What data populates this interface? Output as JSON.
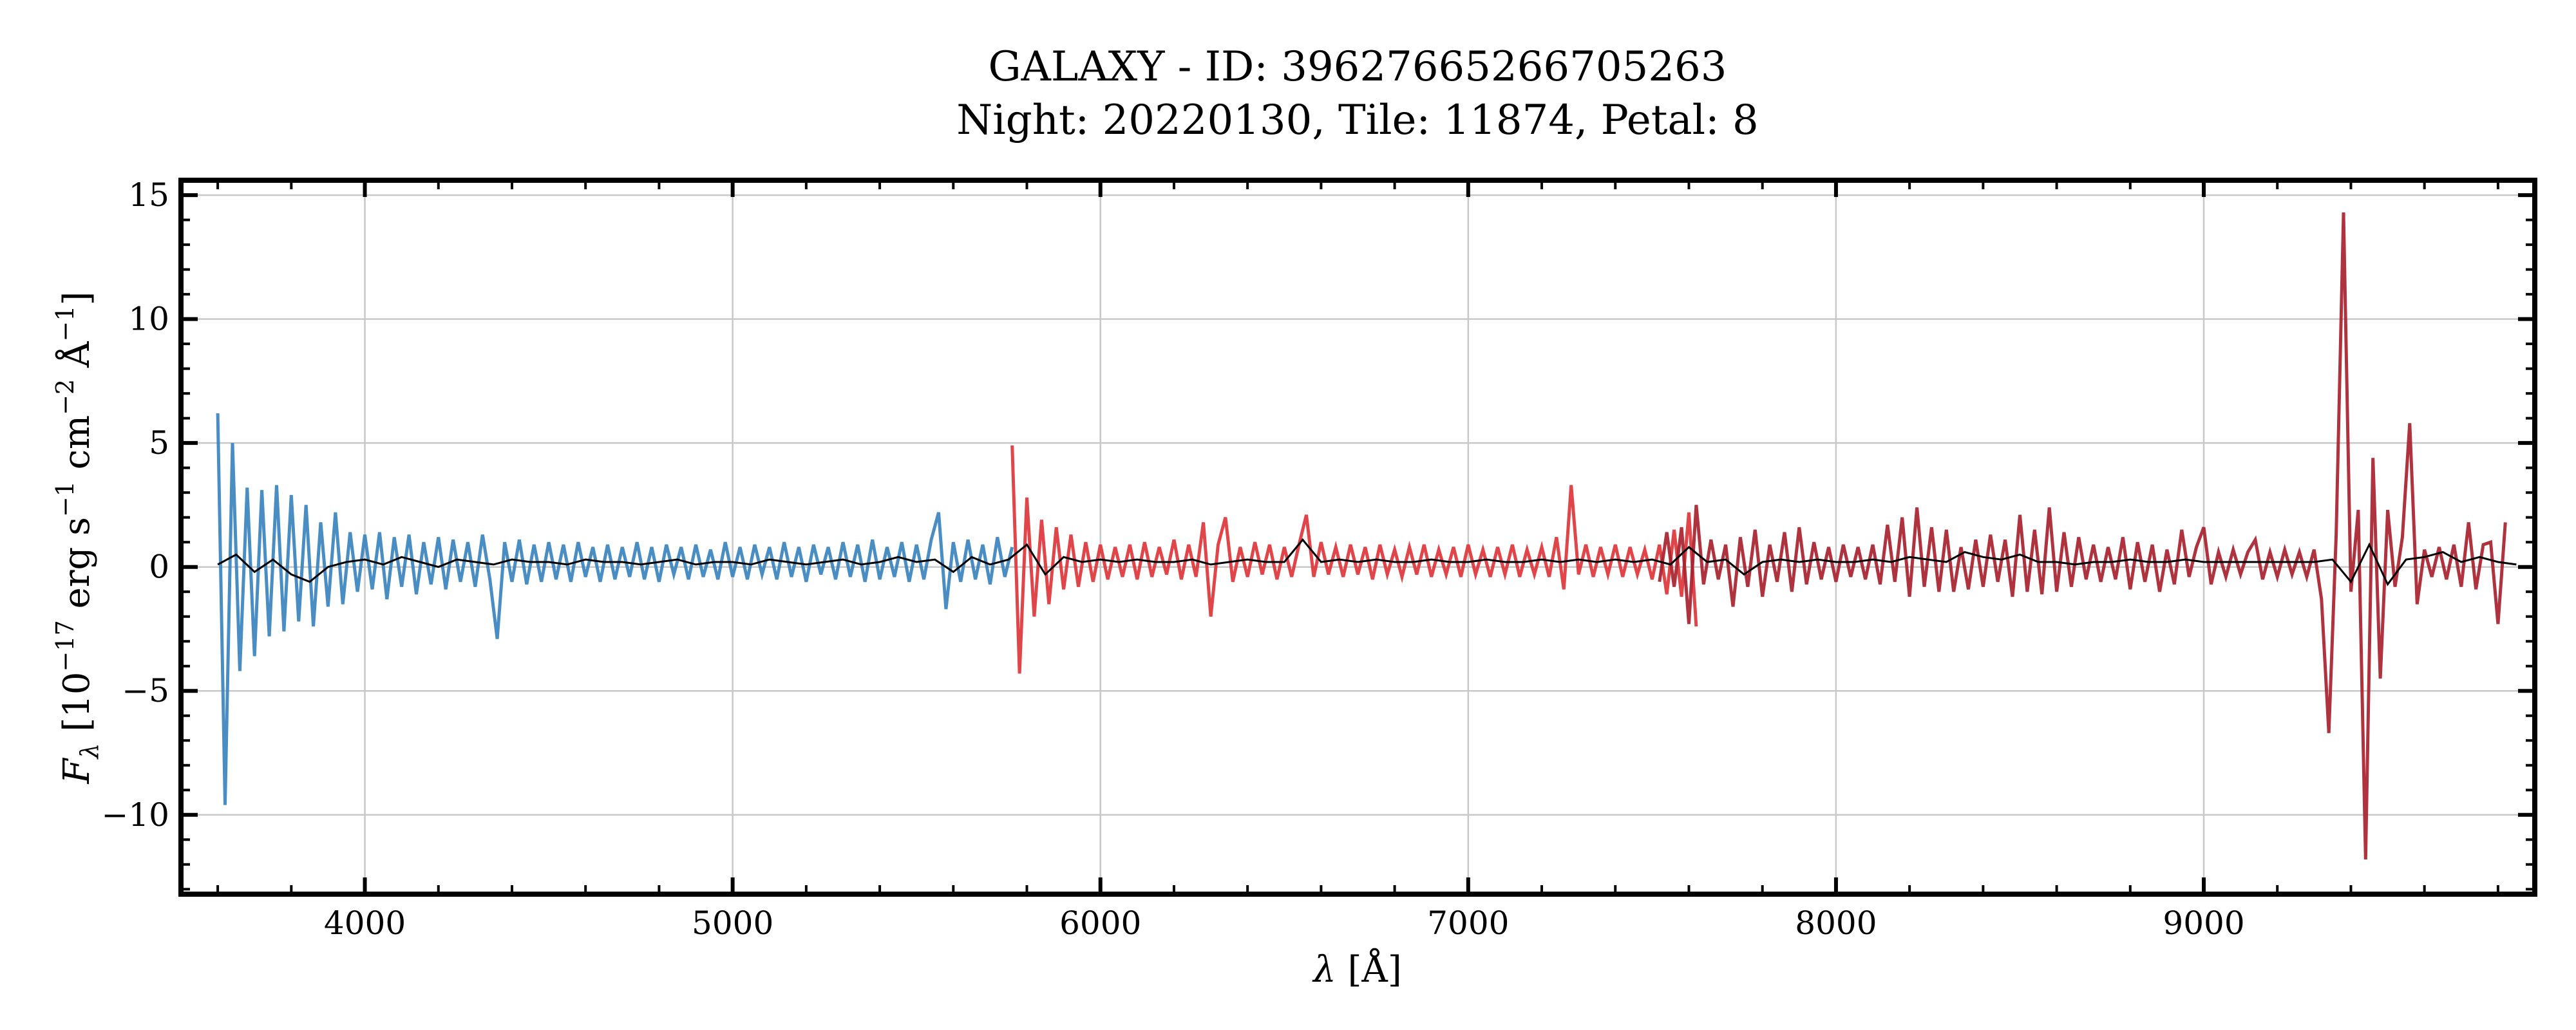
{
  "chart_data": {
    "type": "line",
    "title": [
      "GALAXY - ID: 39627665266705263",
      "Night: 20220130, Tile: 11874, Petal: 8"
    ],
    "xlabel": {
      "symbol": "λ",
      "unit": " [Å]"
    },
    "ylabel": {
      "main": "F",
      "sub": "λ",
      "parts": [
        " [10",
        "−17",
        " erg s",
        "−1",
        " cm",
        "−2",
        " Å",
        "−1",
        "]"
      ]
    },
    "xlim": [
      3500,
      9900
    ],
    "ylim": [
      -13.2,
      15.6
    ],
    "xticks": [
      4000,
      5000,
      6000,
      7000,
      8000,
      9000
    ],
    "xtick_labels": [
      "4000",
      "5000",
      "6000",
      "7000",
      "8000",
      "9000"
    ],
    "yticks": [
      -10,
      -5,
      0,
      5,
      10,
      15
    ],
    "ytick_labels": [
      "−10",
      "−5",
      "0",
      "5",
      "10",
      "15"
    ],
    "grid": true,
    "series": [
      {
        "arm": "b",
        "color": "#3a83be",
        "lambda_start": 3600,
        "lambda_step": 20,
        "flux": [
          6.2,
          -9.6,
          5.0,
          -4.2,
          3.2,
          -3.6,
          3.1,
          -2.8,
          3.3,
          -2.6,
          2.9,
          -2.2,
          2.5,
          -2.4,
          1.8,
          -1.6,
          2.2,
          -1.5,
          1.4,
          -1.0,
          1.3,
          -0.9,
          1.4,
          -1.3,
          1.2,
          -0.8,
          1.3,
          -1.1,
          1.0,
          -0.7,
          1.2,
          -0.9,
          1.1,
          -0.6,
          1.0,
          -0.8,
          1.3,
          -0.5,
          -2.9,
          1.0,
          -0.6,
          1.1,
          -0.7,
          0.9,
          -0.6,
          1.0,
          -0.5,
          0.9,
          -0.6,
          1.0,
          -0.4,
          0.8,
          -0.6,
          0.9,
          -0.5,
          0.8,
          -0.4,
          1.0,
          -0.5,
          0.8,
          -0.6,
          0.9,
          -0.3,
          0.8,
          -0.5,
          0.9,
          -0.4,
          0.7,
          -0.5,
          1.0,
          -0.4,
          0.8,
          -0.5,
          0.9,
          -0.3,
          0.8,
          -0.5,
          1.0,
          -0.4,
          0.8,
          -0.6,
          0.9,
          -0.3,
          0.8,
          -0.5,
          1.0,
          -0.4,
          0.9,
          -0.6,
          1.1,
          -0.5,
          0.8,
          -0.4,
          1.0,
          -0.6,
          0.9,
          -0.5,
          1.1,
          2.2,
          -1.7,
          1.0,
          -0.6,
          1.1,
          -0.5,
          0.9,
          -0.7,
          1.2,
          -0.4,
          0.8
        ]
      },
      {
        "arm": "r",
        "color": "#dc3539",
        "lambda_start": 5760,
        "lambda_step": 20,
        "flux": [
          4.9,
          -4.3,
          2.8,
          -2.0,
          1.9,
          -1.5,
          1.6,
          -0.9,
          1.3,
          -0.8,
          1.0,
          -0.6,
          0.9,
          -0.5,
          0.8,
          -0.4,
          0.9,
          -0.5,
          1.0,
          -0.4,
          0.8,
          -0.3,
          1.1,
          -0.5,
          0.9,
          -0.4,
          1.8,
          -2.0,
          0.9,
          2.0,
          -0.6,
          0.8,
          -0.4,
          1.0,
          -0.3,
          0.9,
          -0.5,
          0.8,
          -0.4,
          0.9,
          2.1,
          -0.4,
          1.0,
          -0.3,
          0.8,
          -0.4,
          0.9,
          -0.3,
          0.8,
          -0.5,
          0.9,
          -0.3,
          0.7,
          -0.4,
          0.8,
          -0.3,
          0.9,
          -0.4,
          0.7,
          -0.3,
          0.8,
          -0.4,
          0.9,
          -0.3,
          0.7,
          -0.4,
          0.8,
          -0.3,
          0.9,
          -0.4,
          0.7,
          -0.3,
          0.8,
          -0.4,
          1.2,
          -0.9,
          3.3,
          -0.3,
          0.9,
          -0.4,
          0.8,
          -0.3,
          0.9,
          -0.4,
          0.8,
          -0.3,
          0.7,
          -0.5,
          0.9,
          -1.1,
          1.5,
          -1.2,
          2.2,
          -2.4
        ]
      },
      {
        "arm": "z",
        "color": "#a8222f",
        "lambda_start": 7520,
        "lambda_step": 20,
        "flux": [
          -0.6,
          1.4,
          -0.8,
          1.6,
          -2.3,
          2.5,
          -0.7,
          1.1,
          -0.5,
          0.9,
          -1.6,
          1.2,
          -0.8,
          1.5,
          -1.2,
          0.9,
          -0.6,
          1.4,
          -1.0,
          1.6,
          -0.7,
          1.0,
          -0.5,
          0.8,
          -0.6,
          0.9,
          -0.4,
          0.8,
          -0.5,
          0.9,
          -0.7,
          1.7,
          -0.6,
          2.0,
          -1.2,
          2.4,
          -0.8,
          1.6,
          -1.0,
          1.5,
          -1.0,
          0.8,
          -0.9,
          1.1,
          -0.8,
          1.3,
          -0.6,
          1.1,
          -1.2,
          2.1,
          -1.0,
          1.5,
          -1.1,
          2.4,
          -1.0,
          1.4,
          -0.8,
          1.2,
          -0.5,
          0.9,
          -0.6,
          0.8,
          -0.5,
          1.2,
          -0.9,
          1.0,
          -0.6,
          0.9,
          -1.0,
          0.7,
          -0.7,
          1.5,
          -0.4,
          0.8,
          1.6,
          -0.7,
          0.6,
          -0.4,
          0.7,
          -0.3,
          0.6,
          1.1,
          -0.5,
          0.6,
          -0.4,
          0.7,
          -0.3,
          0.6,
          -0.4,
          0.7,
          -1.3,
          -6.7,
          1.3,
          14.3,
          -1.0,
          2.3,
          -11.8,
          4.4,
          -4.5,
          2.3,
          -0.8,
          1.2,
          5.8,
          -1.5,
          0.7,
          -0.4,
          0.8,
          -0.5,
          0.9,
          -0.8,
          1.8,
          -0.9,
          0.9,
          1.0,
          -2.3,
          1.8
        ]
      }
    ],
    "model": {
      "color": "#000000",
      "lambda_start": 3600,
      "lambda_step": 50,
      "flux": [
        0.1,
        0.5,
        -0.2,
        0.3,
        -0.3,
        -0.6,
        0.0,
        0.2,
        0.3,
        0.1,
        0.4,
        0.2,
        0.0,
        0.3,
        0.2,
        0.1,
        0.3,
        0.2,
        0.2,
        0.1,
        0.3,
        0.2,
        0.2,
        0.1,
        0.2,
        0.3,
        0.1,
        0.2,
        0.2,
        0.1,
        0.3,
        0.2,
        0.1,
        0.2,
        0.3,
        0.1,
        0.2,
        0.4,
        0.2,
        0.3,
        -0.2,
        0.4,
        0.1,
        0.3,
        0.9,
        -0.3,
        0.4,
        0.2,
        0.3,
        0.2,
        0.3,
        0.2,
        0.2,
        0.3,
        0.1,
        0.2,
        0.3,
        0.2,
        0.2,
        1.1,
        0.2,
        0.3,
        0.2,
        0.3,
        0.2,
        0.2,
        0.3,
        0.2,
        0.2,
        0.3,
        0.2,
        0.2,
        0.3,
        0.2,
        0.3,
        0.2,
        0.3,
        0.2,
        0.3,
        0.1,
        0.8,
        0.2,
        0.3,
        -0.3,
        0.2,
        0.3,
        0.2,
        0.3,
        0.2,
        0.2,
        0.3,
        0.2,
        0.4,
        0.3,
        0.2,
        0.6,
        0.4,
        0.3,
        0.5,
        0.2,
        0.2,
        0.1,
        0.2,
        0.2,
        0.3,
        0.2,
        0.2,
        0.3,
        0.2,
        0.2,
        0.2,
        0.2,
        0.2,
        0.2,
        0.2,
        0.3,
        -0.6,
        0.9,
        -0.7,
        0.3,
        0.4,
        0.6,
        0.2,
        0.4,
        0.2,
        0.1
      ]
    }
  }
}
